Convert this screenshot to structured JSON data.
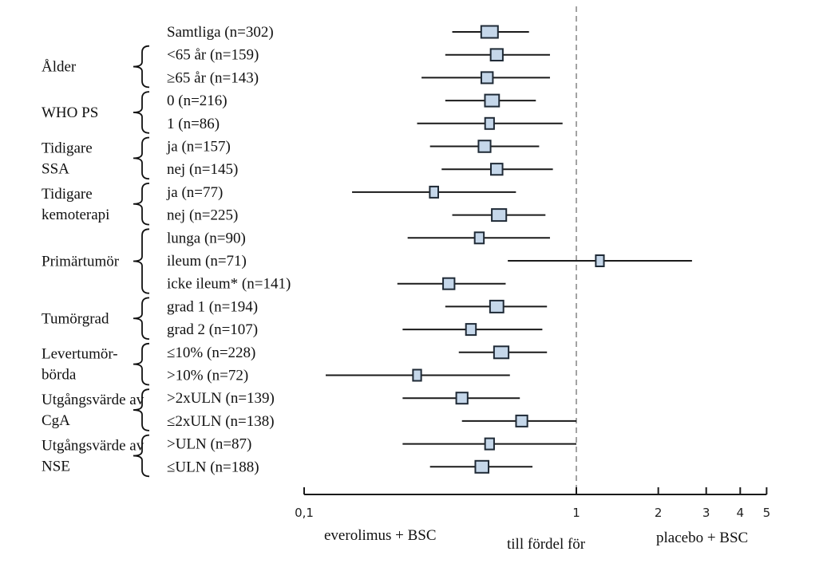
{
  "chart_data": {
    "type": "forest",
    "title": "",
    "xlabel": "till fördel för",
    "xscale": "log",
    "xlim": [
      0.1,
      5
    ],
    "xticks": [
      0.1,
      1,
      2,
      3,
      4,
      5
    ],
    "xtick_labels": [
      "0,1",
      "1",
      "2",
      "3",
      "4",
      "5"
    ],
    "reference_line": 1,
    "favours_left": "everolimus + BSC",
    "favours_right": "placebo + BSC",
    "box_color": "#c5d7ea",
    "line_color": "#1a1a1a",
    "ref_line_color": "#8c8c8c",
    "groups": [
      {
        "label": [
          "Ålder"
        ],
        "rows": [
          1,
          2
        ]
      },
      {
        "label": [
          "WHO PS"
        ],
        "rows": [
          3,
          4
        ]
      },
      {
        "label": [
          "Tidigare",
          "SSA"
        ],
        "rows": [
          5,
          6
        ]
      },
      {
        "label": [
          "Tidigare",
          "kemoterapi"
        ],
        "rows": [
          7,
          8
        ]
      },
      {
        "label": [
          "Primärtumör"
        ],
        "rows": [
          9,
          10,
          11
        ]
      },
      {
        "label": [
          "Tumörgrad"
        ],
        "rows": [
          12,
          13
        ]
      },
      {
        "label": [
          "Levertumör-",
          "börda"
        ],
        "rows": [
          14,
          15
        ]
      },
      {
        "label": [
          "Utgångsvärde av",
          "CgA"
        ],
        "rows": [
          16,
          17
        ]
      },
      {
        "label": [
          "Utgångsvärde av",
          "NSE"
        ],
        "rows": [
          18,
          19
        ]
      }
    ],
    "rows": [
      {
        "label": "Samtliga (n=302)",
        "n": 302,
        "hr": 0.48,
        "lo": 0.35,
        "hi": 0.67
      },
      {
        "label": "<65 år (n=159)",
        "n": 159,
        "hr": 0.51,
        "lo": 0.33,
        "hi": 0.8
      },
      {
        "label": "≥65 år (n=143)",
        "n": 143,
        "hr": 0.47,
        "lo": 0.27,
        "hi": 0.8
      },
      {
        "label": "0 (n=216)",
        "n": 216,
        "hr": 0.49,
        "lo": 0.33,
        "hi": 0.71
      },
      {
        "label": "1 (n=86)",
        "n": 86,
        "hr": 0.48,
        "lo": 0.26,
        "hi": 0.89
      },
      {
        "label": "ja (n=157)",
        "n": 157,
        "hr": 0.46,
        "lo": 0.29,
        "hi": 0.73
      },
      {
        "label": "nej (n=145)",
        "n": 145,
        "hr": 0.51,
        "lo": 0.32,
        "hi": 0.82
      },
      {
        "label": "ja (n=77)",
        "n": 77,
        "hr": 0.3,
        "lo": 0.15,
        "hi": 0.6
      },
      {
        "label": "nej (n=225)",
        "n": 225,
        "hr": 0.52,
        "lo": 0.35,
        "hi": 0.77
      },
      {
        "label": "lunga (n=90)",
        "n": 90,
        "hr": 0.44,
        "lo": 0.24,
        "hi": 0.8
      },
      {
        "label": "ileum (n=71)",
        "n": 71,
        "hr": 1.22,
        "lo": 0.56,
        "hi": 2.66
      },
      {
        "label": "icke ileum* (n=141)",
        "n": 141,
        "hr": 0.34,
        "lo": 0.22,
        "hi": 0.55
      },
      {
        "label": "grad 1 (n=194)",
        "n": 194,
        "hr": 0.51,
        "lo": 0.33,
        "hi": 0.78
      },
      {
        "label": "grad 2 (n=107)",
        "n": 107,
        "hr": 0.41,
        "lo": 0.23,
        "hi": 0.75
      },
      {
        "label": "≤10% (n=228)",
        "n": 228,
        "hr": 0.53,
        "lo": 0.37,
        "hi": 0.78
      },
      {
        "label": ">10% (n=72)",
        "n": 72,
        "hr": 0.26,
        "lo": 0.12,
        "hi": 0.57
      },
      {
        "label": ">2xULN (n=139)",
        "n": 139,
        "hr": 0.38,
        "lo": 0.23,
        "hi": 0.62
      },
      {
        "label": "≤2xULN (n=138)",
        "n": 138,
        "hr": 0.63,
        "lo": 0.38,
        "hi": 1.0
      },
      {
        "label": ">ULN (n=87)",
        "n": 87,
        "hr": 0.48,
        "lo": 0.23,
        "hi": 1.0
      },
      {
        "label": "≤ULN (n=188)",
        "n": 188,
        "hr": 0.45,
        "lo": 0.29,
        "hi": 0.69
      }
    ]
  }
}
